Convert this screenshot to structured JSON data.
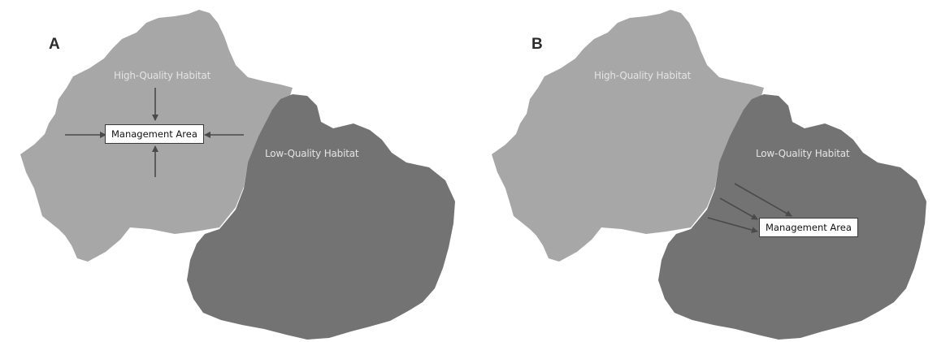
{
  "panels": [
    {
      "letter": "A",
      "high_label": "High-Quality Habitat",
      "low_label": "Low-Quality Habitat",
      "management_label": "Management Area"
    },
    {
      "letter": "B",
      "high_label": "High-Quality Habitat",
      "low_label": "Low-Quality Habitat",
      "management_label": "Management Area"
    }
  ],
  "colors": {
    "high_quality_habitat": "#a7a7a7",
    "low_quality_habitat": "#737373",
    "arrow": "#4a4a4a"
  }
}
